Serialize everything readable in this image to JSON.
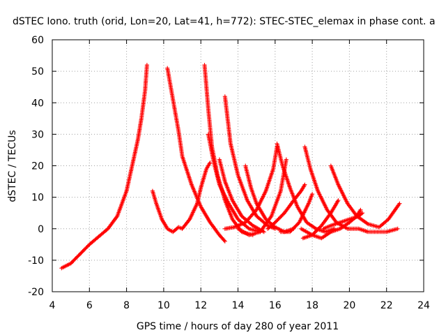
{
  "chart_data": {
    "type": "scatter",
    "title": "dSTEC Iono. truth (orid, Lon=20, Lat=41, h=772): STEC-STEC_elemax in phase cont. a",
    "xlabel": "GPS time / hours of day 280 of year 2011",
    "ylabel": "dSTEC  / TECUs",
    "xlim": [
      4,
      24
    ],
    "ylim": [
      -20,
      60
    ],
    "xticks": [
      "4",
      "6",
      "8",
      "10",
      "12",
      "14",
      "16",
      "18",
      "20",
      "22",
      "24"
    ],
    "yticks": [
      "-20",
      "-10",
      "0",
      "10",
      "20",
      "30",
      "40",
      "50",
      "60"
    ],
    "grid": true,
    "marker": "plus",
    "color": "#ff0000",
    "series": [
      {
        "x": [
          4.5,
          5.0,
          5.5,
          6.0,
          6.5,
          7.0,
          7.5,
          8.0,
          8.3,
          8.6,
          8.8,
          9.0,
          9.1
        ],
        "y": [
          -12.5,
          -11,
          -8,
          -5,
          -2.5,
          0,
          4,
          12,
          20,
          28,
          35,
          44,
          52
        ]
      },
      {
        "x": [
          9.4,
          9.6,
          9.9,
          10.2,
          10.5,
          10.8,
          11.0,
          11.4,
          11.8,
          12.0,
          12.3,
          12.5
        ],
        "y": [
          12,
          8,
          3,
          0,
          -1,
          0.5,
          0,
          3,
          8,
          13,
          19,
          21
        ]
      },
      {
        "x": [
          10.2,
          10.5,
          10.8,
          11.0,
          11.5,
          12.0,
          12.5,
          13.0,
          13.3
        ],
        "y": [
          51,
          41,
          31,
          23,
          14,
          7,
          2,
          -2,
          -4
        ]
      },
      {
        "x": [
          12.2,
          12.4,
          12.6,
          12.9,
          13.3,
          13.7,
          14.2,
          14.8
        ],
        "y": [
          52,
          38,
          26,
          17,
          9,
          3,
          -1,
          -2
        ]
      },
      {
        "x": [
          12.4,
          12.7,
          13.0,
          13.5,
          14.0,
          14.6,
          15.2
        ],
        "y": [
          30,
          21,
          14,
          8,
          3,
          0,
          -1
        ]
      },
      {
        "x": [
          13.0,
          13.3,
          13.7,
          14.2,
          14.8,
          15.4
        ],
        "y": [
          22,
          15,
          9,
          4,
          1,
          -1
        ]
      },
      {
        "x": [
          13.3,
          13.6,
          14.0,
          14.5,
          15.0,
          15.6,
          16.0
        ],
        "y": [
          42,
          27,
          17,
          9,
          4,
          1,
          0
        ]
      },
      {
        "x": [
          14.4,
          14.7,
          15.0,
          15.5,
          16.0,
          16.5,
          17.0
        ],
        "y": [
          20,
          13,
          8,
          3,
          0.5,
          -1,
          0
        ]
      },
      {
        "x": [
          13.3,
          13.8,
          14.4,
          15.0,
          15.5,
          15.9,
          16.1
        ],
        "y": [
          0,
          0.5,
          2,
          6,
          12,
          19,
          26
        ]
      },
      {
        "x": [
          14.0,
          14.6,
          15.2,
          15.8,
          16.3,
          16.6
        ],
        "y": [
          0,
          -2,
          -1,
          4,
          12,
          22
        ]
      },
      {
        "x": [
          16.1,
          16.4,
          16.8,
          17.2,
          17.7,
          18.2,
          18.7,
          19.2
        ],
        "y": [
          27,
          20,
          13,
          7,
          2,
          0,
          -1,
          0
        ]
      },
      {
        "x": [
          15.6,
          16.0,
          16.5,
          17.0,
          17.4,
          17.6
        ],
        "y": [
          0,
          2,
          5,
          9,
          12,
          14
        ]
      },
      {
        "x": [
          16.3,
          16.8,
          17.3,
          17.8,
          18.0
        ],
        "y": [
          -1,
          -1,
          2,
          8,
          11
        ]
      },
      {
        "x": [
          17.6,
          17.9,
          18.3,
          18.8,
          19.3,
          19.9,
          20.5,
          21.0,
          21.5,
          22.0,
          22.6
        ],
        "y": [
          26,
          19,
          12,
          6,
          2,
          0,
          0,
          -1,
          -1,
          -1,
          0
        ]
      },
      {
        "x": [
          17.4,
          18.0,
          18.5,
          19.0,
          19.5,
          20.0,
          20.4,
          20.6
        ],
        "y": [
          0,
          -2,
          -3,
          -1,
          0,
          2,
          4,
          6
        ]
      },
      {
        "x": [
          17.5,
          18.0,
          18.5,
          19.0,
          19.4
        ],
        "y": [
          -3,
          -2,
          1,
          5,
          9
        ]
      },
      {
        "x": [
          18.6,
          19.0,
          19.5,
          20.0,
          20.5,
          20.7
        ],
        "y": [
          0,
          1,
          2,
          3,
          4,
          5
        ]
      },
      {
        "x": [
          19.0,
          19.4,
          19.9,
          20.4,
          21.0,
          21.6,
          22.1,
          22.7
        ],
        "y": [
          20,
          14,
          8,
          4,
          1.5,
          0.5,
          3,
          8
        ]
      }
    ]
  }
}
